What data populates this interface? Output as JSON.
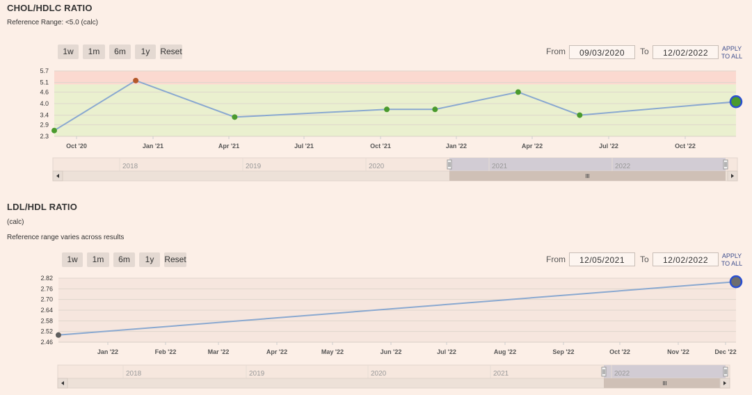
{
  "range_buttons": [
    "1w",
    "1m",
    "6m",
    "1y",
    "Reset"
  ],
  "from_label": "From",
  "to_label": "To",
  "apply_label_1": "APPLY",
  "apply_label_2": "TO ALL",
  "panel1": {
    "title": "CHOL/HDLC RATIO",
    "reference": "Reference Range:  <5.0 (calc)",
    "from": "09/03/2020",
    "to": "12/02/2022",
    "navigator_years": [
      "2018",
      "2019",
      "2020",
      "2021",
      "2022"
    ]
  },
  "panel2": {
    "title": "LDL/HDL RATIO",
    "unit": "(calc)",
    "reference": "Reference range varies across results",
    "from": "12/05/2021",
    "to": "12/02/2022",
    "navigator_years": [
      "2018",
      "2019",
      "2020",
      "2021",
      "2022"
    ]
  },
  "chart_data": [
    {
      "type": "line",
      "title": "CHOL/HDLC RATIO",
      "x_tick_labels": [
        "Oct '20",
        "Jan '21",
        "Apr '21",
        "Jul '21",
        "Oct '21",
        "Jan '22",
        "Apr '22",
        "Jul '22",
        "Oct '22"
      ],
      "y_tick_labels": [
        "2.3",
        "2.9",
        "3.4",
        "4.0",
        "4.6",
        "5.1",
        "5.7"
      ],
      "ylim": [
        2.3,
        5.7
      ],
      "grid": true,
      "reference_bands": [
        {
          "from": 2.3,
          "to": 5.0,
          "color": "#eaf0cf"
        },
        {
          "from": 5.0,
          "to": 5.7,
          "color": "#fbd9d0"
        }
      ],
      "series": [
        {
          "line_color": "#89a8d0",
          "points": [
            {
              "x": "2020-09-03",
              "y": 2.6,
              "color": "#4a9a2e"
            },
            {
              "x": "2020-12-10",
              "y": 5.2,
              "color": "#b4582a"
            },
            {
              "x": "2021-04-08",
              "y": 3.3,
              "color": "#4a9a2e"
            },
            {
              "x": "2021-10-08",
              "y": 3.7,
              "color": "#4a9a2e"
            },
            {
              "x": "2021-12-05",
              "y": 3.7,
              "color": "#4a9a2e"
            },
            {
              "x": "2022-03-15",
              "y": 4.6,
              "color": "#4a9a2e"
            },
            {
              "x": "2022-05-28",
              "y": 3.4,
              "color": "#4a9a2e"
            },
            {
              "x": "2022-12-02",
              "y": 4.1,
              "color": "#4a9a2e",
              "highlighted": true
            }
          ]
        }
      ]
    },
    {
      "type": "line",
      "title": "LDL/HDL RATIO",
      "x_tick_labels": [
        "Jan '22",
        "Feb '22",
        "Mar '22",
        "Apr '22",
        "May '22",
        "Jun '22",
        "Jul '22",
        "Aug '22",
        "Sep '22",
        "Oct '22",
        "Nov '22",
        "Dec '22"
      ],
      "y_tick_labels": [
        "2.46",
        "2.52",
        "2.58",
        "2.64",
        "2.70",
        "2.76",
        "2.82"
      ],
      "ylim": [
        2.46,
        2.82
      ],
      "grid": true,
      "series": [
        {
          "line_color": "#89a8d0",
          "points": [
            {
              "x": "2021-12-05",
              "y": 2.5,
              "color": "#5e5e5e"
            },
            {
              "x": "2022-12-02",
              "y": 2.8,
              "color": "#6e6e6e",
              "highlighted": true
            }
          ]
        }
      ]
    }
  ]
}
